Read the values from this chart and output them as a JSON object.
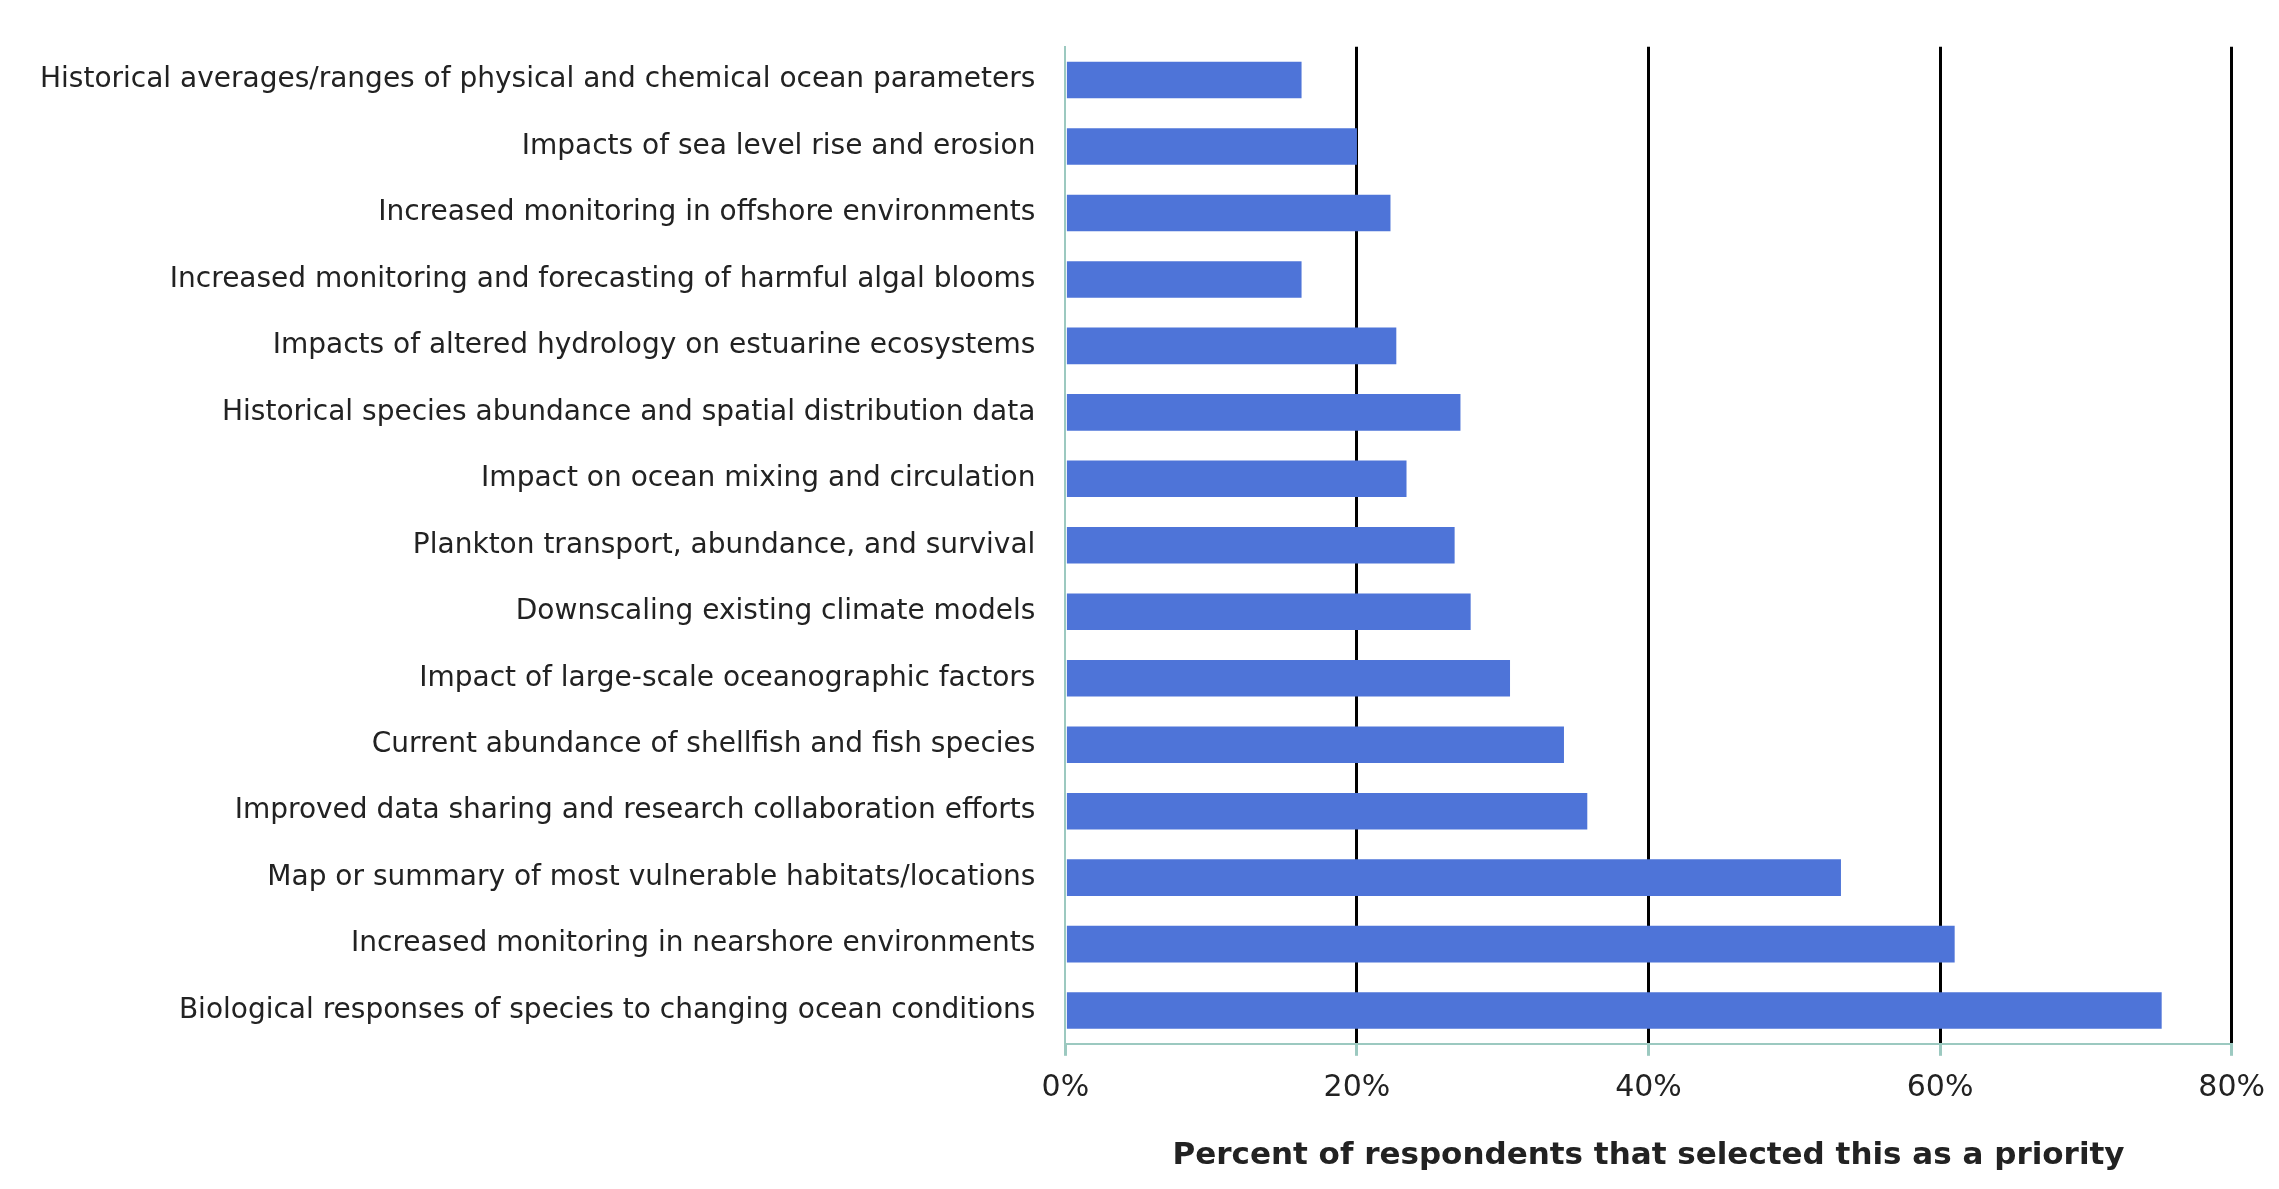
{
  "chart_data": {
    "type": "bar",
    "orientation": "horizontal",
    "xlabel": "Percent of respondents that selected this as a priority",
    "categories": [
      "Historical averages/ranges of physical and chemical ocean parameters",
      "Impacts of sea level rise and erosion",
      "Increased monitoring in offshore environments",
      "Increased monitoring and forecasting of harmful algal blooms",
      "Impacts of altered hydrology on estuarine ecosystems",
      "Historical species abundance and spatial distribution data",
      "Impact on ocean mixing and circulation",
      "Plankton transport, abundance, and survival",
      "Downscaling existing climate models",
      "Impact of large-scale oceanographic factors",
      "Current abundance of shellfish and fish species",
      "Improved data sharing and research collaboration efforts",
      "Map or summary of most vulnerable habitats/locations",
      "Increased monitoring in nearshore environments",
      "Biological responses of species to changing ocean conditions"
    ],
    "values": [
      16.2,
      20.0,
      22.3,
      16.2,
      22.7,
      27.1,
      23.4,
      26.7,
      27.8,
      30.5,
      34.2,
      35.8,
      53.2,
      61.0,
      75.2
    ],
    "color": "#4e74d8",
    "xlim": [
      0,
      80
    ],
    "xticks": [
      {
        "value": 0,
        "label": "0%"
      },
      {
        "value": 20,
        "label": "20%"
      },
      {
        "value": 40,
        "label": "40%"
      },
      {
        "value": 60,
        "label": "60%"
      },
      {
        "value": 80,
        "label": "80%"
      }
    ],
    "grid": "x"
  }
}
